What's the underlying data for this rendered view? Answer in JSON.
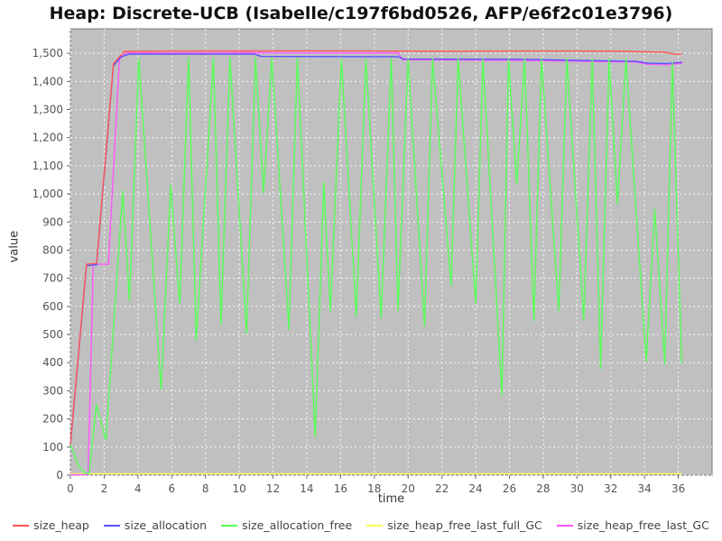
{
  "title": "Heap: Discrete-UCB (Isabelle/c197f6bd0526, AFP/e6f2c01e3796)",
  "chart_data": {
    "type": "line",
    "title": "Heap: Discrete-UCB (Isabelle/c197f6bd0526, AFP/e6f2c01e3796)",
    "xlabel": "time",
    "ylabel": "value",
    "xlim": [
      0,
      38
    ],
    "ylim": [
      0,
      1587
    ],
    "grid": true,
    "legend_position": "bottom",
    "plot_bg": "#c0c0c0",
    "grid_color": "#ffffff",
    "border_color": "#777777",
    "tick_color": "#666666",
    "tick_label_color": "#555555",
    "x_ticks": {
      "values": [
        0,
        2,
        4,
        6,
        8,
        10,
        12,
        14,
        16,
        18,
        20,
        22,
        24,
        26,
        28,
        30,
        32,
        34,
        36
      ],
      "labels": [
        "0",
        "2",
        "4",
        "6",
        "8",
        "10",
        "12",
        "14",
        "16",
        "18",
        "20",
        "22",
        "24",
        "26",
        "28",
        "30",
        "32",
        "34",
        "36"
      ]
    },
    "y_ticks": {
      "values": [
        0,
        100,
        200,
        300,
        400,
        500,
        600,
        700,
        800,
        900,
        1000,
        1100,
        1200,
        1300,
        1400,
        1500
      ],
      "labels": [
        "0",
        "100",
        "200",
        "300",
        "400",
        "500",
        "600",
        "700",
        "800",
        "900",
        "1,000",
        "1,100",
        "1,200",
        "1,300",
        "1,400",
        "1,500"
      ]
    },
    "draw_order": [
      3,
      4,
      1,
      2,
      0
    ],
    "series": [
      {
        "name": "size_heap",
        "color": "#ff5555",
        "points": [
          [
            0,
            110
          ],
          [
            0.95,
            750
          ],
          [
            1.55,
            753
          ],
          [
            2.55,
            1463
          ],
          [
            3.2,
            1507
          ],
          [
            6,
            1508
          ],
          [
            10,
            1508
          ],
          [
            14,
            1509
          ],
          [
            18,
            1508
          ],
          [
            22,
            1507
          ],
          [
            26,
            1508
          ],
          [
            30,
            1508
          ],
          [
            33,
            1507
          ],
          [
            35.2,
            1504
          ],
          [
            35.8,
            1497
          ],
          [
            36.2,
            1497
          ]
        ]
      },
      {
        "name": "size_allocation",
        "color": "#5555ff",
        "points": [
          [
            0,
            105
          ],
          [
            0.95,
            745
          ],
          [
            1.55,
            748
          ],
          [
            2.55,
            1456
          ],
          [
            3.0,
            1488
          ],
          [
            3.5,
            1497
          ],
          [
            10.9,
            1497
          ],
          [
            11.3,
            1489
          ],
          [
            19.4,
            1488
          ],
          [
            19.7,
            1480
          ],
          [
            26.5,
            1479
          ],
          [
            30,
            1475
          ],
          [
            33.5,
            1472
          ],
          [
            34.2,
            1465
          ],
          [
            35.3,
            1464
          ],
          [
            36.2,
            1468
          ]
        ]
      },
      {
        "name": "size_allocation_free",
        "color": "#55ff55",
        "points": [
          [
            0,
            110
          ],
          [
            0.5,
            30
          ],
          [
            0.85,
            8
          ],
          [
            1.1,
            5
          ],
          [
            1.54,
            250
          ],
          [
            2.1,
            125
          ],
          [
            3.1,
            1010
          ],
          [
            3.5,
            620
          ],
          [
            4.05,
            1480
          ],
          [
            5.37,
            305
          ],
          [
            5.94,
            1030
          ],
          [
            6.47,
            610
          ],
          [
            7.0,
            1483
          ],
          [
            7.45,
            480
          ],
          [
            8.47,
            1483
          ],
          [
            8.92,
            535
          ],
          [
            9.45,
            1483
          ],
          [
            10.43,
            505
          ],
          [
            10.96,
            1483
          ],
          [
            11.44,
            1005
          ],
          [
            11.93,
            1483
          ],
          [
            12.94,
            520
          ],
          [
            13.44,
            1483
          ],
          [
            14.5,
            137
          ],
          [
            15.0,
            1040
          ],
          [
            15.4,
            585
          ],
          [
            16.05,
            1480
          ],
          [
            16.93,
            565
          ],
          [
            17.5,
            1480
          ],
          [
            18.4,
            560
          ],
          [
            19.0,
            1480
          ],
          [
            19.4,
            585
          ],
          [
            20.0,
            1480
          ],
          [
            20.97,
            530
          ],
          [
            21.45,
            1480
          ],
          [
            22.55,
            675
          ],
          [
            22.96,
            1480
          ],
          [
            24.0,
            610
          ],
          [
            24.43,
            1480
          ],
          [
            25.55,
            285
          ],
          [
            25.94,
            1480
          ],
          [
            26.43,
            1035
          ],
          [
            26.9,
            1480
          ],
          [
            27.45,
            550
          ],
          [
            27.9,
            1480
          ],
          [
            28.92,
            585
          ],
          [
            29.4,
            1480
          ],
          [
            30.4,
            550
          ],
          [
            30.9,
            1480
          ],
          [
            31.4,
            380
          ],
          [
            31.9,
            1480
          ],
          [
            32.4,
            965
          ],
          [
            32.9,
            1480
          ],
          [
            34.1,
            405
          ],
          [
            34.6,
            945
          ],
          [
            35.2,
            395
          ],
          [
            35.65,
            1466
          ],
          [
            36.2,
            400
          ]
        ]
      },
      {
        "name": "size_heap_free_last_full_GC",
        "color": "#ffff55",
        "points": [
          [
            0,
            5
          ],
          [
            36.2,
            5
          ]
        ]
      },
      {
        "name": "size_heap_free_last_GC",
        "color": "#ff55ff",
        "points": [
          [
            0,
            2
          ],
          [
            1.05,
            2
          ],
          [
            1.35,
            750
          ],
          [
            2.25,
            750
          ],
          [
            2.9,
            1478
          ],
          [
            3.3,
            1501
          ],
          [
            10,
            1502
          ],
          [
            19.4,
            1501
          ],
          [
            19.7,
            1477
          ],
          [
            26.5,
            1475
          ],
          [
            30,
            1472
          ],
          [
            33.5,
            1469
          ],
          [
            34.2,
            1461
          ],
          [
            35.3,
            1460
          ],
          [
            36.2,
            1464
          ]
        ]
      }
    ]
  }
}
